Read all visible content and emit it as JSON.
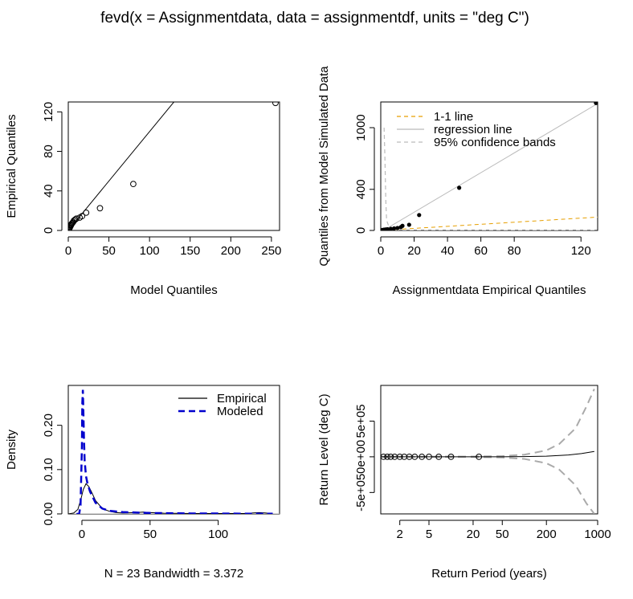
{
  "title": "fevd(x = Assignmentdata, data = assignmentdf, units = \"deg C\")",
  "chart_data": [
    {
      "id": "qq-model",
      "type": "scatter",
      "xlabel": "Model Quantiles",
      "ylabel": "Empirical Quantiles",
      "xlim": [
        0,
        260
      ],
      "ylim": [
        0,
        130
      ],
      "xticks": [
        0,
        50,
        100,
        150,
        200,
        250
      ],
      "yticks": [
        0,
        40,
        80,
        120
      ],
      "points": [
        {
          "x": 0.5,
          "y": 0.5
        },
        {
          "x": 1.0,
          "y": 1.5
        },
        {
          "x": 1.5,
          "y": 2.5
        },
        {
          "x": 2.0,
          "y": 3.0
        },
        {
          "x": 2.5,
          "y": 4.0
        },
        {
          "x": 3.0,
          "y": 5.0
        },
        {
          "x": 3.5,
          "y": 5.5
        },
        {
          "x": 4.0,
          "y": 6.5
        },
        {
          "x": 5.0,
          "y": 7.5
        },
        {
          "x": 6.0,
          "y": 8.5
        },
        {
          "x": 7.0,
          "y": 10.0
        },
        {
          "x": 8.5,
          "y": 11.0
        },
        {
          "x": 10.0,
          "y": 12.0
        },
        {
          "x": 14.0,
          "y": 13.0
        },
        {
          "x": 17.0,
          "y": 14.5
        },
        {
          "x": 22.0,
          "y": 18.0
        },
        {
          "x": 39.0,
          "y": 22.5
        },
        {
          "x": 80.0,
          "y": 47.0
        },
        {
          "x": 255.0,
          "y": 129.0
        }
      ],
      "reference_line": {
        "type": "1-1",
        "x": [
          0,
          134
        ],
        "y": [
          0,
          134
        ]
      }
    },
    {
      "id": "qq-simulated",
      "type": "scatter",
      "xlabel": "Assignmentdata Empirical Quantiles",
      "ylabel": "Quantiles from Model Simulated Data",
      "xlim": [
        0,
        130
      ],
      "ylim": [
        0,
        1250
      ],
      "xticks": [
        0,
        20,
        40,
        60,
        80,
        120
      ],
      "yticks": [
        0,
        400,
        1000
      ],
      "legend": {
        "placement": "top-left",
        "entries": [
          {
            "label": "1-1 line",
            "color": "#E69F00",
            "style": "dashed"
          },
          {
            "label": "regression line",
            "color": "#bbbbbb",
            "style": "solid"
          },
          {
            "label": "95% confidence bands",
            "color": "#bbbbbb",
            "style": "dashed"
          }
        ]
      },
      "points": [
        {
          "x": 1,
          "y": 5
        },
        {
          "x": 2,
          "y": 8
        },
        {
          "x": 3,
          "y": 10
        },
        {
          "x": 4,
          "y": 12
        },
        {
          "x": 6,
          "y": 16
        },
        {
          "x": 8,
          "y": 20
        },
        {
          "x": 10,
          "y": 24
        },
        {
          "x": 12,
          "y": 32
        },
        {
          "x": 13,
          "y": 45
        },
        {
          "x": 17,
          "y": 55
        },
        {
          "x": 23,
          "y": 150
        },
        {
          "x": 47,
          "y": 415
        },
        {
          "x": 129,
          "y": 1240
        }
      ],
      "regression_line": {
        "x": [
          0,
          130
        ],
        "y": [
          -15,
          1235
        ]
      },
      "one_to_one_line": {
        "x": [
          0,
          134
        ],
        "y": [
          0,
          134
        ]
      },
      "confidence_bands": {
        "upper": {
          "x": [
            2,
            2.5,
            3,
            3.5,
            5
          ],
          "y": [
            1000,
            700,
            300,
            100,
            30
          ]
        },
        "lower": {
          "x": [
            0,
            134
          ],
          "y": [
            0,
            0
          ]
        }
      }
    },
    {
      "id": "density",
      "type": "line",
      "xlabel": "N = 23   Bandwidth = 3.372",
      "ylabel": "Density",
      "xlim": [
        -10,
        145
      ],
      "ylim": [
        0,
        0.29
      ],
      "xticks": [
        0,
        50,
        100
      ],
      "yticks": [
        0.0,
        0.1,
        0.2
      ],
      "legend": {
        "placement": "top-right",
        "entries": [
          {
            "label": "Empirical",
            "color": "#000000",
            "style": "solid"
          },
          {
            "label": "Modeled",
            "color": "#0000CD",
            "style": "dashed"
          }
        ]
      },
      "series": [
        {
          "name": "Empirical",
          "color": "#000000",
          "style": "solid",
          "x": [
            -10,
            -6,
            -3,
            -1,
            1,
            3,
            5,
            7,
            10,
            15,
            20,
            25,
            30,
            40,
            45,
            50,
            60,
            80,
            100,
            120,
            125,
            130,
            135,
            140
          ],
          "y": [
            0.0,
            0.002,
            0.01,
            0.03,
            0.055,
            0.068,
            0.062,
            0.05,
            0.03,
            0.012,
            0.006,
            0.003,
            0.002,
            0.003,
            0.004,
            0.003,
            0.0015,
            0.001,
            0.001,
            0.001,
            0.002,
            0.003,
            0.002,
            0.0
          ]
        },
        {
          "name": "Modeled",
          "color": "#0000CD",
          "style": "dashed",
          "x": [
            -4,
            -2,
            -1,
            0,
            0.3,
            0.7,
            1,
            1.5,
            2,
            3,
            4,
            6,
            10,
            15,
            20,
            30,
            50,
            80,
            100,
            120,
            140
          ],
          "y": [
            0.0,
            0.0,
            0.02,
            0.15,
            0.25,
            0.28,
            0.24,
            0.17,
            0.12,
            0.085,
            0.07,
            0.05,
            0.025,
            0.012,
            0.007,
            0.004,
            0.002,
            0.001,
            0.0008,
            0.0005,
            0.0004
          ]
        }
      ]
    },
    {
      "id": "return-level",
      "type": "line",
      "xlabel": "Return Period (years)",
      "ylabel": "Return Level (deg C)",
      "xscale": "log",
      "xlim": [
        1.1,
        1000
      ],
      "ylim": [
        -800000,
        1000000
      ],
      "xticks": [
        2,
        5,
        20,
        50,
        200,
        1000
      ],
      "yticks": [
        -500000,
        0,
        500000
      ],
      "ytick_labels": [
        "-5e+05",
        "0e+00",
        "5e+05"
      ],
      "points": [
        {
          "x": 1.2,
          "y": 0
        },
        {
          "x": 1.35,
          "y": 0
        },
        {
          "x": 1.5,
          "y": 0
        },
        {
          "x": 1.7,
          "y": 0
        },
        {
          "x": 2.0,
          "y": 0
        },
        {
          "x": 2.3,
          "y": 0
        },
        {
          "x": 2.7,
          "y": 0
        },
        {
          "x": 3.2,
          "y": 0
        },
        {
          "x": 4.0,
          "y": 0
        },
        {
          "x": 5.0,
          "y": 0
        },
        {
          "x": 6.8,
          "y": 0
        },
        {
          "x": 10.0,
          "y": 0
        },
        {
          "x": 24.0,
          "y": 0
        }
      ],
      "estimate": {
        "x": [
          1.1,
          10,
          50,
          100,
          200,
          400,
          600,
          900
        ],
        "y": [
          0,
          200,
          800,
          2500,
          8000,
          25000,
          45000,
          75000
        ]
      },
      "upper_ci": {
        "x": [
          1.1,
          20,
          50,
          100,
          200,
          300,
          500,
          700,
          900
        ],
        "y": [
          1000,
          3000,
          10000,
          30000,
          90000,
          180000,
          400000,
          700000,
          950000
        ]
      },
      "lower_ci": {
        "x": [
          1.1,
          20,
          50,
          100,
          200,
          300,
          500,
          700,
          900
        ],
        "y": [
          -1000,
          -3000,
          -10000,
          -30000,
          -90000,
          -180000,
          -400000,
          -650000,
          -800000
        ]
      }
    }
  ]
}
